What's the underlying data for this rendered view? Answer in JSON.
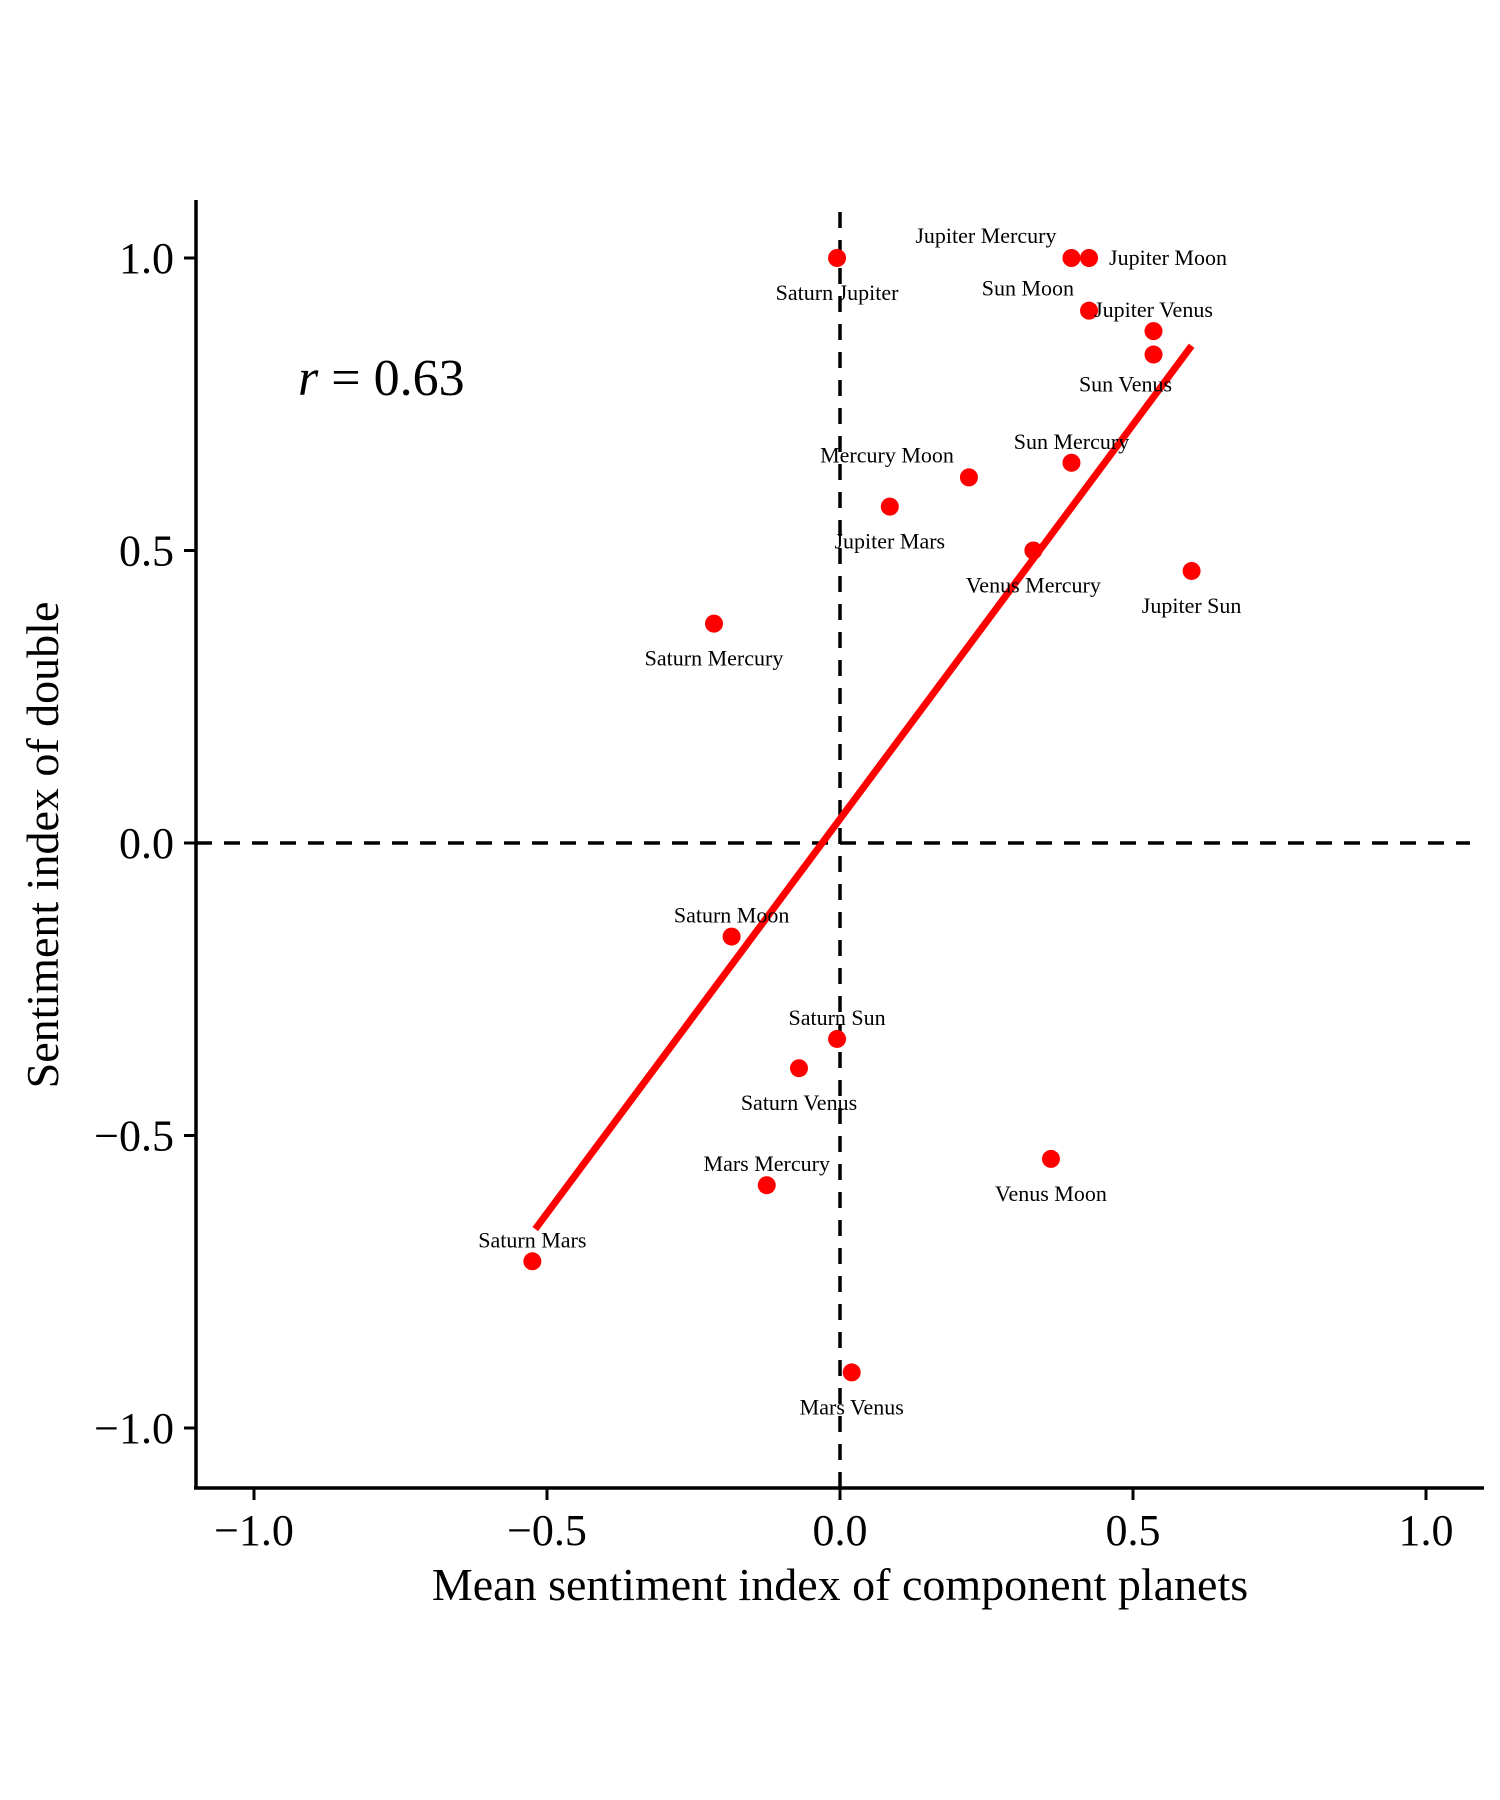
{
  "chart_data": {
    "type": "scatter",
    "xlabel": "Mean sentiment index of component planets",
    "ylabel": "Sentiment index of double",
    "xlim": [
      -1.1,
      1.1
    ],
    "ylim": [
      -1.1,
      1.1
    ],
    "xticks": [
      "−1.0",
      "−0.5",
      "0.0",
      "0.5",
      "1.0"
    ],
    "yticks": [
      "1.0",
      "0.5",
      "0.0",
      "−0.5",
      "−1.0"
    ],
    "annotation": {
      "r_symbol": "r",
      "r_text": " = 0.63"
    },
    "grid": false,
    "point_color": "#ff0000",
    "line_color": "#ff0000",
    "reference_lines": {
      "x": 0,
      "y": 0,
      "style": "dashed"
    },
    "fit_line": {
      "x": [
        -0.52,
        0.6
      ],
      "y": [
        -0.66,
        0.85
      ]
    },
    "points": [
      {
        "label": "Saturn Jupiter",
        "x": -0.005,
        "y": 1.0,
        "label_pos": "below"
      },
      {
        "label": "Jupiter Mercury",
        "x": 0.395,
        "y": 1.0,
        "label_pos": "above-left"
      },
      {
        "label": "Jupiter Moon",
        "x": 0.425,
        "y": 1.0,
        "label_pos": "right"
      },
      {
        "label": "Sun Moon",
        "x": 0.425,
        "y": 0.91,
        "label_pos": "above-left"
      },
      {
        "label": "Jupiter Venus",
        "x": 0.535,
        "y": 0.875,
        "label_pos": "above"
      },
      {
        "label": "Sun Venus",
        "x": 0.535,
        "y": 0.835,
        "label_pos": "below-left"
      },
      {
        "label": "Sun Mercury",
        "x": 0.395,
        "y": 0.65,
        "label_pos": "above"
      },
      {
        "label": "Mercury Moon",
        "x": 0.22,
        "y": 0.625,
        "label_pos": "above-left"
      },
      {
        "label": "Jupiter Mars",
        "x": 0.085,
        "y": 0.575,
        "label_pos": "below"
      },
      {
        "label": "Venus Mercury",
        "x": 0.33,
        "y": 0.5,
        "label_pos": "below"
      },
      {
        "label": "Jupiter Sun",
        "x": 0.6,
        "y": 0.465,
        "label_pos": "below"
      },
      {
        "label": "Saturn Mercury",
        "x": -0.215,
        "y": 0.375,
        "label_pos": "below"
      },
      {
        "label": "Saturn Moon",
        "x": -0.185,
        "y": -0.16,
        "label_pos": "above"
      },
      {
        "label": "Saturn Sun",
        "x": -0.005,
        "y": -0.335,
        "label_pos": "above"
      },
      {
        "label": "Saturn Venus",
        "x": -0.07,
        "y": -0.385,
        "label_pos": "below"
      },
      {
        "label": "Mars Mercury",
        "x": -0.125,
        "y": -0.585,
        "label_pos": "above"
      },
      {
        "label": "Venus Moon",
        "x": 0.36,
        "y": -0.54,
        "label_pos": "below"
      },
      {
        "label": "Saturn Mars",
        "x": -0.525,
        "y": -0.715,
        "label_pos": "above"
      },
      {
        "label": "Mars Venus",
        "x": 0.02,
        "y": -0.905,
        "label_pos": "below"
      }
    ]
  }
}
